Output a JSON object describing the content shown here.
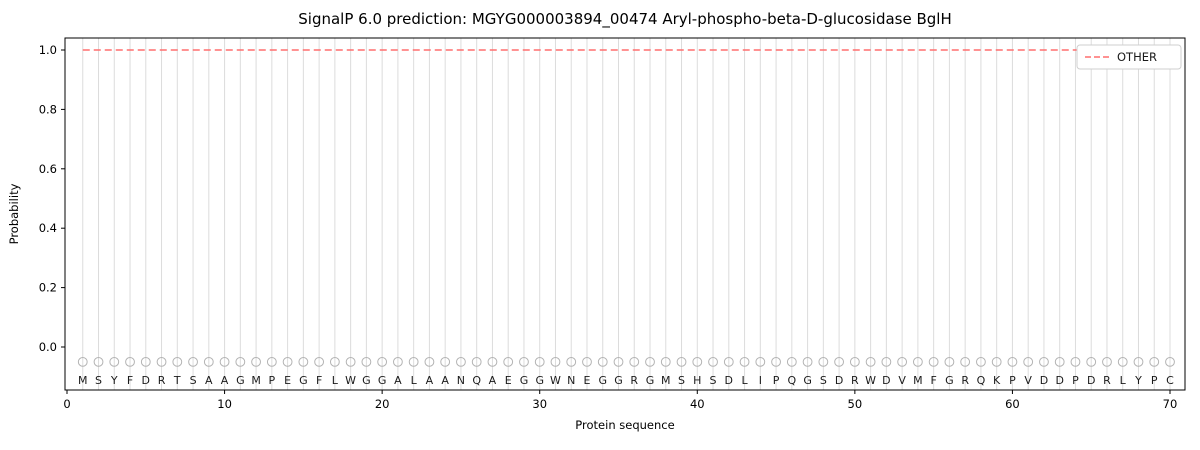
{
  "figure": {
    "background": "#ffffff"
  },
  "chart_data": {
    "type": "line",
    "title": "SignalP 6.0 prediction: MGYG000003894_00474 Aryl-phospho-beta-D-glucosidase BglH",
    "xlabel": "Protein sequence",
    "ylabel": "Probability",
    "x_ticks": [
      0,
      10,
      20,
      30,
      40,
      50,
      60,
      70
    ],
    "y_ticks": [
      0.0,
      0.2,
      0.4,
      0.6,
      0.8,
      1.0
    ],
    "xlim": [
      -0.15,
      71
    ],
    "ylim": [
      -0.145,
      1.04
    ],
    "grid": "vertical-per-residue",
    "legend_position": "upper-right",
    "legend": [
      {
        "label": "OTHER",
        "color": "#ff6e6e",
        "line_style": "dashed"
      }
    ],
    "sequence": "MSYFDRTSAAGMPEGFLWGGALAANQAEGGWNEGGRGMSHSDLIPQGSDRWDVMFGRQKPVDDPDRLYPC",
    "series": [
      {
        "name": "OTHER",
        "line_style": "dashed",
        "color": "#ff6e6e",
        "constant_y": 1.0,
        "x_start": 1,
        "x_end": 70
      }
    ],
    "residue_markers": {
      "shape": "open-circle",
      "y": -0.05,
      "color": "#b3b3b3"
    },
    "colors": {
      "grid": "#dcdcdc",
      "axis": "#000000",
      "letters": "#1a1a1a",
      "marker": "#b3b3b3",
      "other_line": "#ff6e6e",
      "legend_border": "#cfcfcf"
    }
  }
}
